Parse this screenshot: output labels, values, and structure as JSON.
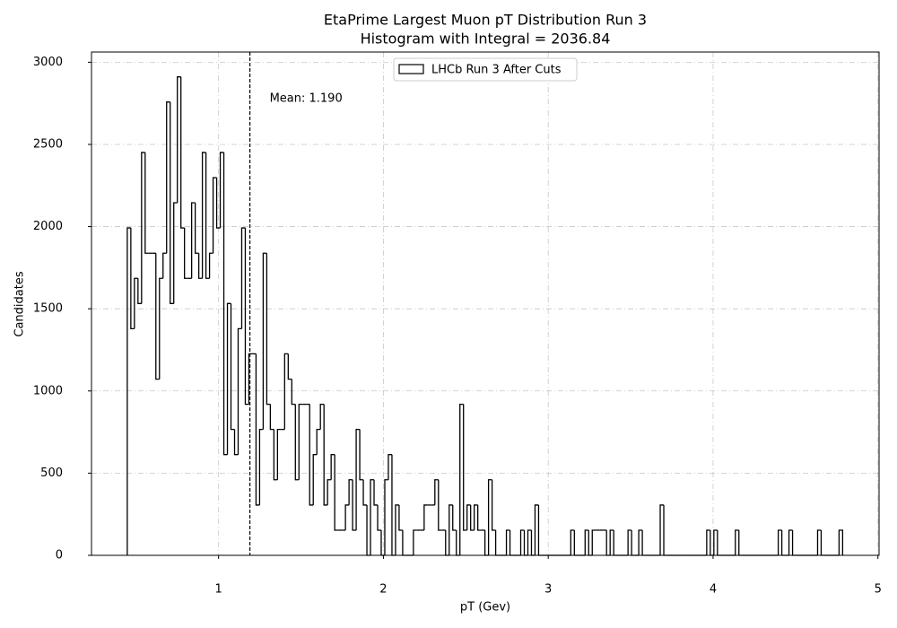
{
  "chart_data": {
    "type": "histogram",
    "title": "EtaPrime Largest Muon pT Distribution Run 3",
    "subtitle": "Histogram with Integral = 2036.84",
    "xlabel": "pT (Gev)",
    "ylabel": "Candidates",
    "annotation": "Mean: 1.190",
    "mean": 1.19,
    "xlim": [
      0.229,
      5.007
    ],
    "ylim": [
      0,
      3062
    ],
    "xticks": [
      1,
      2,
      3,
      4,
      5
    ],
    "yticks": [
      0,
      500,
      1000,
      1500,
      2000,
      2500,
      3000
    ],
    "grid": true,
    "legend": "upper center",
    "bins": [
      0.446,
      0.4677,
      0.4894,
      0.5111,
      0.5328,
      0.5545,
      0.5762,
      0.5979,
      0.6196,
      0.6413,
      0.663,
      0.6847,
      0.7064,
      0.7281,
      0.7498,
      0.7715,
      0.7932,
      0.8149,
      0.8366,
      0.8583,
      0.88,
      0.9017,
      0.9234,
      0.9451,
      0.9668,
      0.9885,
      1.0102,
      1.0319,
      1.0536,
      1.0753,
      1.097,
      1.1187,
      1.1404,
      1.1621,
      1.1838,
      1.2055,
      1.2272,
      1.2489,
      1.2706,
      1.2923,
      1.314,
      1.3357,
      1.3574,
      1.3791,
      1.4008,
      1.4225,
      1.4442,
      1.4659,
      1.4876,
      1.5093,
      1.531,
      1.5527,
      1.5744,
      1.5961,
      1.6178,
      1.6395,
      1.6612,
      1.6829,
      1.7046,
      1.7263,
      1.748,
      1.7697,
      1.7914,
      1.8131,
      1.8348,
      1.8565,
      1.8782,
      1.8999,
      1.9216,
      1.9433,
      1.965,
      1.9867,
      2.0084,
      2.0301,
      2.0518,
      2.0735,
      2.0952,
      2.1169,
      2.1386,
      2.1603,
      2.182,
      2.2037,
      2.2254,
      2.2471,
      2.2688,
      2.2905,
      2.3122,
      2.3339,
      2.3556,
      2.3773,
      2.399,
      2.4207,
      2.4424,
      2.4641,
      2.4858,
      2.5075,
      2.5292,
      2.5509,
      2.5726,
      2.5943,
      2.616,
      2.6377,
      2.6594,
      2.6811,
      2.7028,
      2.7245,
      2.7462,
      2.7679,
      2.7896,
      2.8113,
      2.833,
      2.8547,
      2.8764,
      2.8981,
      2.9198,
      2.9415,
      2.9632,
      2.9849,
      3.0066,
      3.0283,
      3.05,
      3.0717,
      3.0934,
      3.1151,
      3.1368,
      3.1585,
      3.1802,
      3.2019,
      3.2236,
      3.2453,
      3.267,
      3.2887,
      3.3104,
      3.3321,
      3.3538,
      3.3755,
      3.3972,
      3.4189,
      3.4406,
      3.4623,
      3.484,
      3.5057,
      3.5274,
      3.5491,
      3.5708,
      3.5925,
      3.6142,
      3.6359,
      3.6576,
      3.6793,
      3.701,
      3.7227,
      3.7444,
      3.7661,
      3.7878,
      3.8095,
      3.8312,
      3.8529,
      3.8746,
      3.8963,
      3.918,
      3.9397,
      3.9614,
      3.9831,
      4.0048,
      4.0265,
      4.0482,
      4.0699,
      4.0916,
      4.1133,
      4.135,
      4.1567,
      4.1784,
      4.2001,
      4.2218,
      4.2435,
      4.2652,
      4.2869,
      4.3086,
      4.3303,
      4.352,
      4.3737,
      4.3954,
      4.4171,
      4.4388,
      4.4605,
      4.4822,
      4.5039,
      4.5256,
      4.5473,
      4.569,
      4.5907,
      4.6124,
      4.6341,
      4.6558,
      4.6775,
      4.6992,
      4.7209,
      4.7426,
      4.7643,
      4.786
    ],
    "series": [
      {
        "name": "LHCb Run 3 After Cuts",
        "color": "#000000",
        "values": [
          1992,
          1379,
          1685,
          1532,
          2451,
          1838,
          1838,
          1838,
          1072,
          1685,
          1838,
          2758,
          1532,
          2145,
          2911,
          1992,
          1685,
          1685,
          2145,
          1838,
          1685,
          2451,
          1685,
          1838,
          2298,
          1992,
          2451,
          613,
          1532,
          766,
          613,
          1379,
          1992,
          919,
          1226,
          1226,
          306,
          766,
          1838,
          919,
          766,
          460,
          766,
          766,
          1226,
          1072,
          919,
          460,
          919,
          919,
          919,
          306,
          613,
          766,
          919,
          306,
          460,
          613,
          153,
          153,
          153,
          306,
          460,
          153,
          766,
          460,
          306,
          0,
          460,
          306,
          153,
          0,
          460,
          613,
          0,
          306,
          153,
          0,
          0,
          0,
          153,
          153,
          153,
          306,
          306,
          306,
          460,
          153,
          153,
          0,
          306,
          153,
          0,
          919,
          153,
          306,
          153,
          306,
          153,
          153,
          0,
          460,
          153,
          0,
          0,
          0,
          153,
          0,
          0,
          0,
          153,
          0,
          153,
          0,
          306,
          0,
          0,
          0,
          0,
          0,
          0,
          0,
          0,
          0,
          153,
          0,
          0,
          0,
          153,
          0,
          153,
          153,
          153,
          153,
          0,
          153,
          0,
          0,
          0,
          0,
          153,
          0,
          0,
          153,
          0,
          0,
          0,
          0,
          0,
          306,
          0,
          0,
          0,
          0,
          0,
          0,
          0,
          0,
          0,
          0,
          0,
          0,
          153,
          0,
          153,
          0,
          0,
          0,
          0,
          0,
          153,
          0,
          0,
          0,
          0,
          0,
          0,
          0,
          0,
          0,
          0,
          0,
          153,
          0,
          0,
          153,
          0,
          0,
          0,
          0,
          0,
          0,
          0,
          153,
          0,
          0,
          0,
          0,
          0,
          153
        ]
      }
    ]
  }
}
